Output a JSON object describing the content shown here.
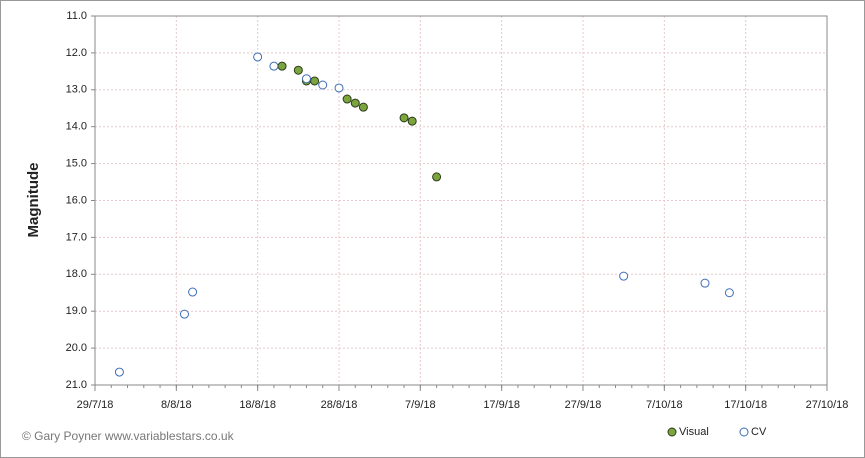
{
  "chart_data": {
    "type": "scatter",
    "y_label": "Magnitude",
    "credit": "© Gary Poyner  www.variablestars.co.uk",
    "xlim": [
      "2018-07-29",
      "2018-10-27"
    ],
    "xticks": [
      {
        "value": "2018-07-29",
        "label": "29/7/18"
      },
      {
        "value": "2018-08-08",
        "label": "8/8/18"
      },
      {
        "value": "2018-08-18",
        "label": "18/8/18"
      },
      {
        "value": "2018-08-28",
        "label": "28/8/18"
      },
      {
        "value": "2018-09-07",
        "label": "7/9/18"
      },
      {
        "value": "2018-09-17",
        "label": "17/9/18"
      },
      {
        "value": "2018-09-27",
        "label": "27/9/18"
      },
      {
        "value": "2018-10-07",
        "label": "7/10/18"
      },
      {
        "value": "2018-10-17",
        "label": "17/10/18"
      },
      {
        "value": "2018-10-27",
        "label": "27/10/18"
      }
    ],
    "ylim": [
      11,
      21
    ],
    "y_reversed": true,
    "yticks": [
      {
        "value": 11,
        "label": "11.0"
      },
      {
        "value": 12,
        "label": "12.0"
      },
      {
        "value": 13,
        "label": "13.0"
      },
      {
        "value": 14,
        "label": "14.0"
      },
      {
        "value": 15,
        "label": "15.0"
      },
      {
        "value": 16,
        "label": "16.0"
      },
      {
        "value": 17,
        "label": "17.0"
      },
      {
        "value": 18,
        "label": "18.0"
      },
      {
        "value": 19,
        "label": "19.0"
      },
      {
        "value": 20,
        "label": "20.0"
      },
      {
        "value": 21,
        "label": "21.0"
      }
    ],
    "grid": true,
    "legend": "bottom-right",
    "series": [
      {
        "name": "Visual",
        "color": "#7ba63e",
        "stroke": "#2e3a1a",
        "x": [
          "2018-08-21",
          "2018-08-23",
          "2018-08-24",
          "2018-08-25",
          "2018-08-29",
          "2018-08-30",
          "2018-08-31",
          "2018-09-05",
          "2018-09-06",
          "2018-09-09"
        ],
        "values": [
          12.36,
          12.47,
          12.76,
          12.76,
          13.25,
          13.36,
          13.47,
          13.76,
          13.85,
          15.36
        ]
      },
      {
        "name": "CV",
        "color": "#ffffff",
        "stroke": "#3d6db5",
        "x": [
          "2018-08-01",
          "2018-08-09",
          "2018-08-10",
          "2018-08-18",
          "2018-08-20",
          "2018-08-24",
          "2018-08-26",
          "2018-08-28",
          "2018-10-02",
          "2018-10-12",
          "2018-10-15"
        ],
        "values": [
          20.65,
          19.08,
          18.48,
          12.11,
          12.36,
          12.7,
          12.87,
          12.95,
          18.05,
          18.24,
          18.5
        ]
      }
    ]
  }
}
